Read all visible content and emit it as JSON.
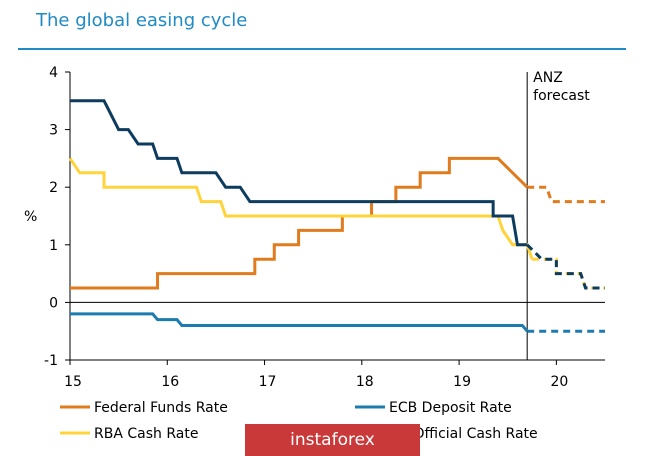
{
  "title": "The global easing cycle",
  "watermark": "instaforex",
  "chart_data": {
    "type": "line",
    "title": "The global easing cycle",
    "ylabel": "%",
    "xlabel": "",
    "xlim": [
      2015,
      2020.5
    ],
    "ylim": [
      -1,
      4
    ],
    "x_ticks": [
      "15",
      "16",
      "17",
      "18",
      "19",
      "20"
    ],
    "y_ticks": [
      "-1",
      "0",
      "1",
      "2",
      "3",
      "4"
    ],
    "annotation": "ANZ\nforecast",
    "forecast_start": 2019.7,
    "legend_position": "bottom",
    "series": [
      {
        "name": "Federal Funds Rate",
        "color": "#e07b1e",
        "values": [
          [
            2015,
            0.25
          ],
          [
            2015.9,
            0.25
          ],
          [
            2015.9,
            0.5
          ],
          [
            2016.9,
            0.5
          ],
          [
            2016.9,
            0.75
          ],
          [
            2017.1,
            0.75
          ],
          [
            2017.1,
            1.0
          ],
          [
            2017.35,
            1.0
          ],
          [
            2017.35,
            1.25
          ],
          [
            2017.8,
            1.25
          ],
          [
            2017.8,
            1.5
          ],
          [
            2018.1,
            1.5
          ],
          [
            2018.1,
            1.75
          ],
          [
            2018.35,
            1.75
          ],
          [
            2018.35,
            2.0
          ],
          [
            2018.6,
            2.0
          ],
          [
            2018.6,
            2.25
          ],
          [
            2018.9,
            2.25
          ],
          [
            2018.9,
            2.5
          ],
          [
            2019.4,
            2.5
          ],
          [
            2019.55,
            2.25
          ],
          [
            2019.55,
            2.25
          ],
          [
            2019.7,
            2.0
          ]
        ],
        "forecast": [
          [
            2019.7,
            2.0
          ],
          [
            2019.9,
            2.0
          ],
          [
            2019.95,
            1.75
          ],
          [
            2020.5,
            1.75
          ]
        ]
      },
      {
        "name": "ECB Deposit Rate",
        "color": "#1c7cb0",
        "values": [
          [
            2015,
            -0.2
          ],
          [
            2015.85,
            -0.2
          ],
          [
            2015.9,
            -0.3
          ],
          [
            2016.1,
            -0.3
          ],
          [
            2016.15,
            -0.4
          ],
          [
            2019.65,
            -0.4
          ],
          [
            2019.7,
            -0.5
          ]
        ],
        "forecast": [
          [
            2019.7,
            -0.5
          ],
          [
            2020.5,
            -0.5
          ]
        ]
      },
      {
        "name": "RBA Cash Rate",
        "color": "#ffd43b",
        "values": [
          [
            2015,
            2.5
          ],
          [
            2015.1,
            2.25
          ],
          [
            2015.35,
            2.25
          ],
          [
            2015.35,
            2.0
          ],
          [
            2016.3,
            2.0
          ],
          [
            2016.35,
            1.75
          ],
          [
            2016.55,
            1.75
          ],
          [
            2016.6,
            1.5
          ],
          [
            2019.4,
            1.5
          ],
          [
            2019.45,
            1.25
          ],
          [
            2019.55,
            1.0
          ],
          [
            2019.7,
            1.0
          ],
          [
            2019.75,
            0.75
          ]
        ],
        "forecast": [
          [
            2019.75,
            0.75
          ],
          [
            2020.0,
            0.75
          ],
          [
            2020.0,
            0.5
          ],
          [
            2020.25,
            0.5
          ],
          [
            2020.3,
            0.25
          ],
          [
            2020.5,
            0.25
          ]
        ]
      },
      {
        "name": "NZ Official Cash Rate",
        "color": "#0d3c5e",
        "values": [
          [
            2015,
            3.5
          ],
          [
            2015.35,
            3.5
          ],
          [
            2015.5,
            3.0
          ],
          [
            2015.6,
            3.0
          ],
          [
            2015.7,
            2.75
          ],
          [
            2015.85,
            2.75
          ],
          [
            2015.9,
            2.5
          ],
          [
            2016.1,
            2.5
          ],
          [
            2016.15,
            2.25
          ],
          [
            2016.5,
            2.25
          ],
          [
            2016.6,
            2.0
          ],
          [
            2016.75,
            2.0
          ],
          [
            2016.85,
            1.75
          ],
          [
            2019.35,
            1.75
          ],
          [
            2019.35,
            1.5
          ],
          [
            2019.55,
            1.5
          ],
          [
            2019.6,
            1.0
          ],
          [
            2019.7,
            1.0
          ]
        ],
        "forecast": [
          [
            2019.7,
            1.0
          ],
          [
            2019.85,
            0.75
          ],
          [
            2020.0,
            0.75
          ],
          [
            2020.0,
            0.5
          ],
          [
            2020.25,
            0.5
          ],
          [
            2020.3,
            0.25
          ],
          [
            2020.5,
            0.25
          ]
        ]
      }
    ]
  },
  "legend": [
    {
      "label": "Federal Funds Rate",
      "color": "#e07b1e"
    },
    {
      "label": "ECB Deposit Rate",
      "color": "#1c7cb0"
    },
    {
      "label": "RBA Cash Rate",
      "color": "#ffd43b"
    },
    {
      "label": "NZ Official Cash Rate",
      "color": "#0d3c5e"
    }
  ]
}
